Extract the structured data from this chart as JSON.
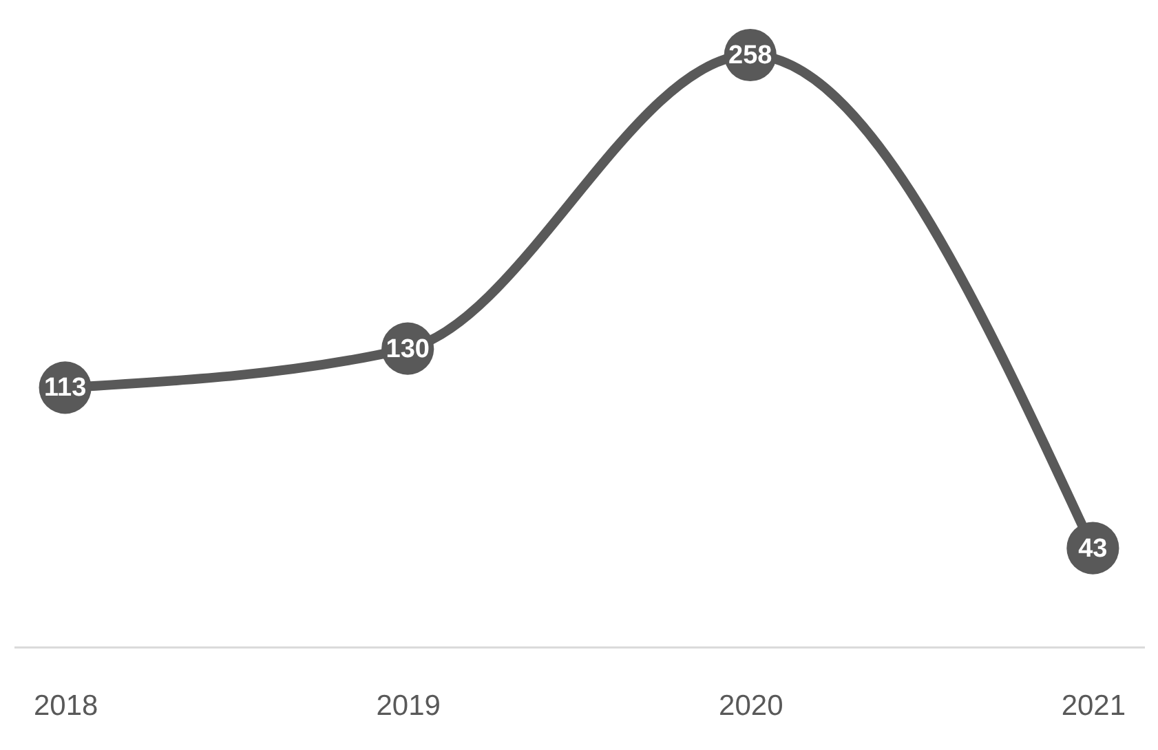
{
  "chart_data": {
    "type": "line",
    "categories": [
      "2018",
      "2019",
      "2020",
      "2021"
    ],
    "values": [
      113,
      130,
      258,
      43
    ],
    "color": "#595959",
    "data_labels": true,
    "marker": "circle",
    "grid": false
  }
}
